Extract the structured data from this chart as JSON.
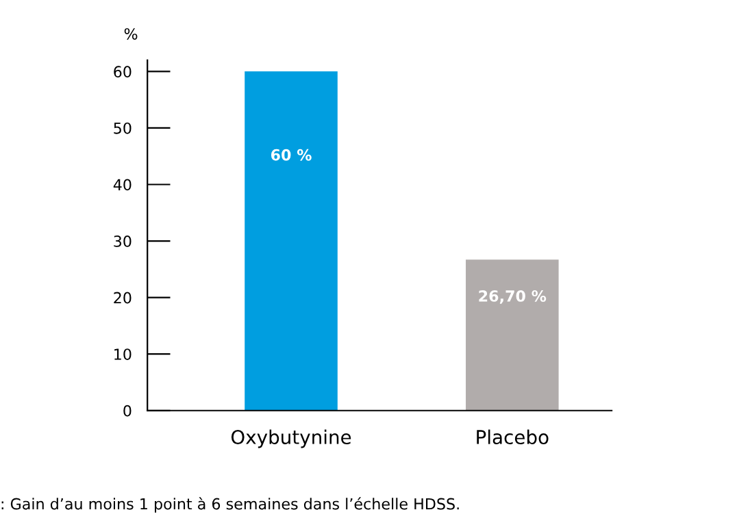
{
  "chart_data": {
    "type": "bar",
    "ylabel": "%",
    "categories": [
      "Oxybutynine",
      "Placebo"
    ],
    "values": [
      60,
      26.7
    ],
    "colors": [
      "#009ee0",
      "#b1acab"
    ],
    "value_labels": [
      "60 %",
      "26,70 %"
    ],
    "ylim": [
      0,
      62
    ],
    "yticks": [
      0,
      10,
      20,
      30,
      40,
      50,
      60
    ],
    "grid": false,
    "legend": false,
    "annotations": [
      ": Gain d’au moins 1 point à 6 semaines dans l’échelle HDSS."
    ]
  }
}
